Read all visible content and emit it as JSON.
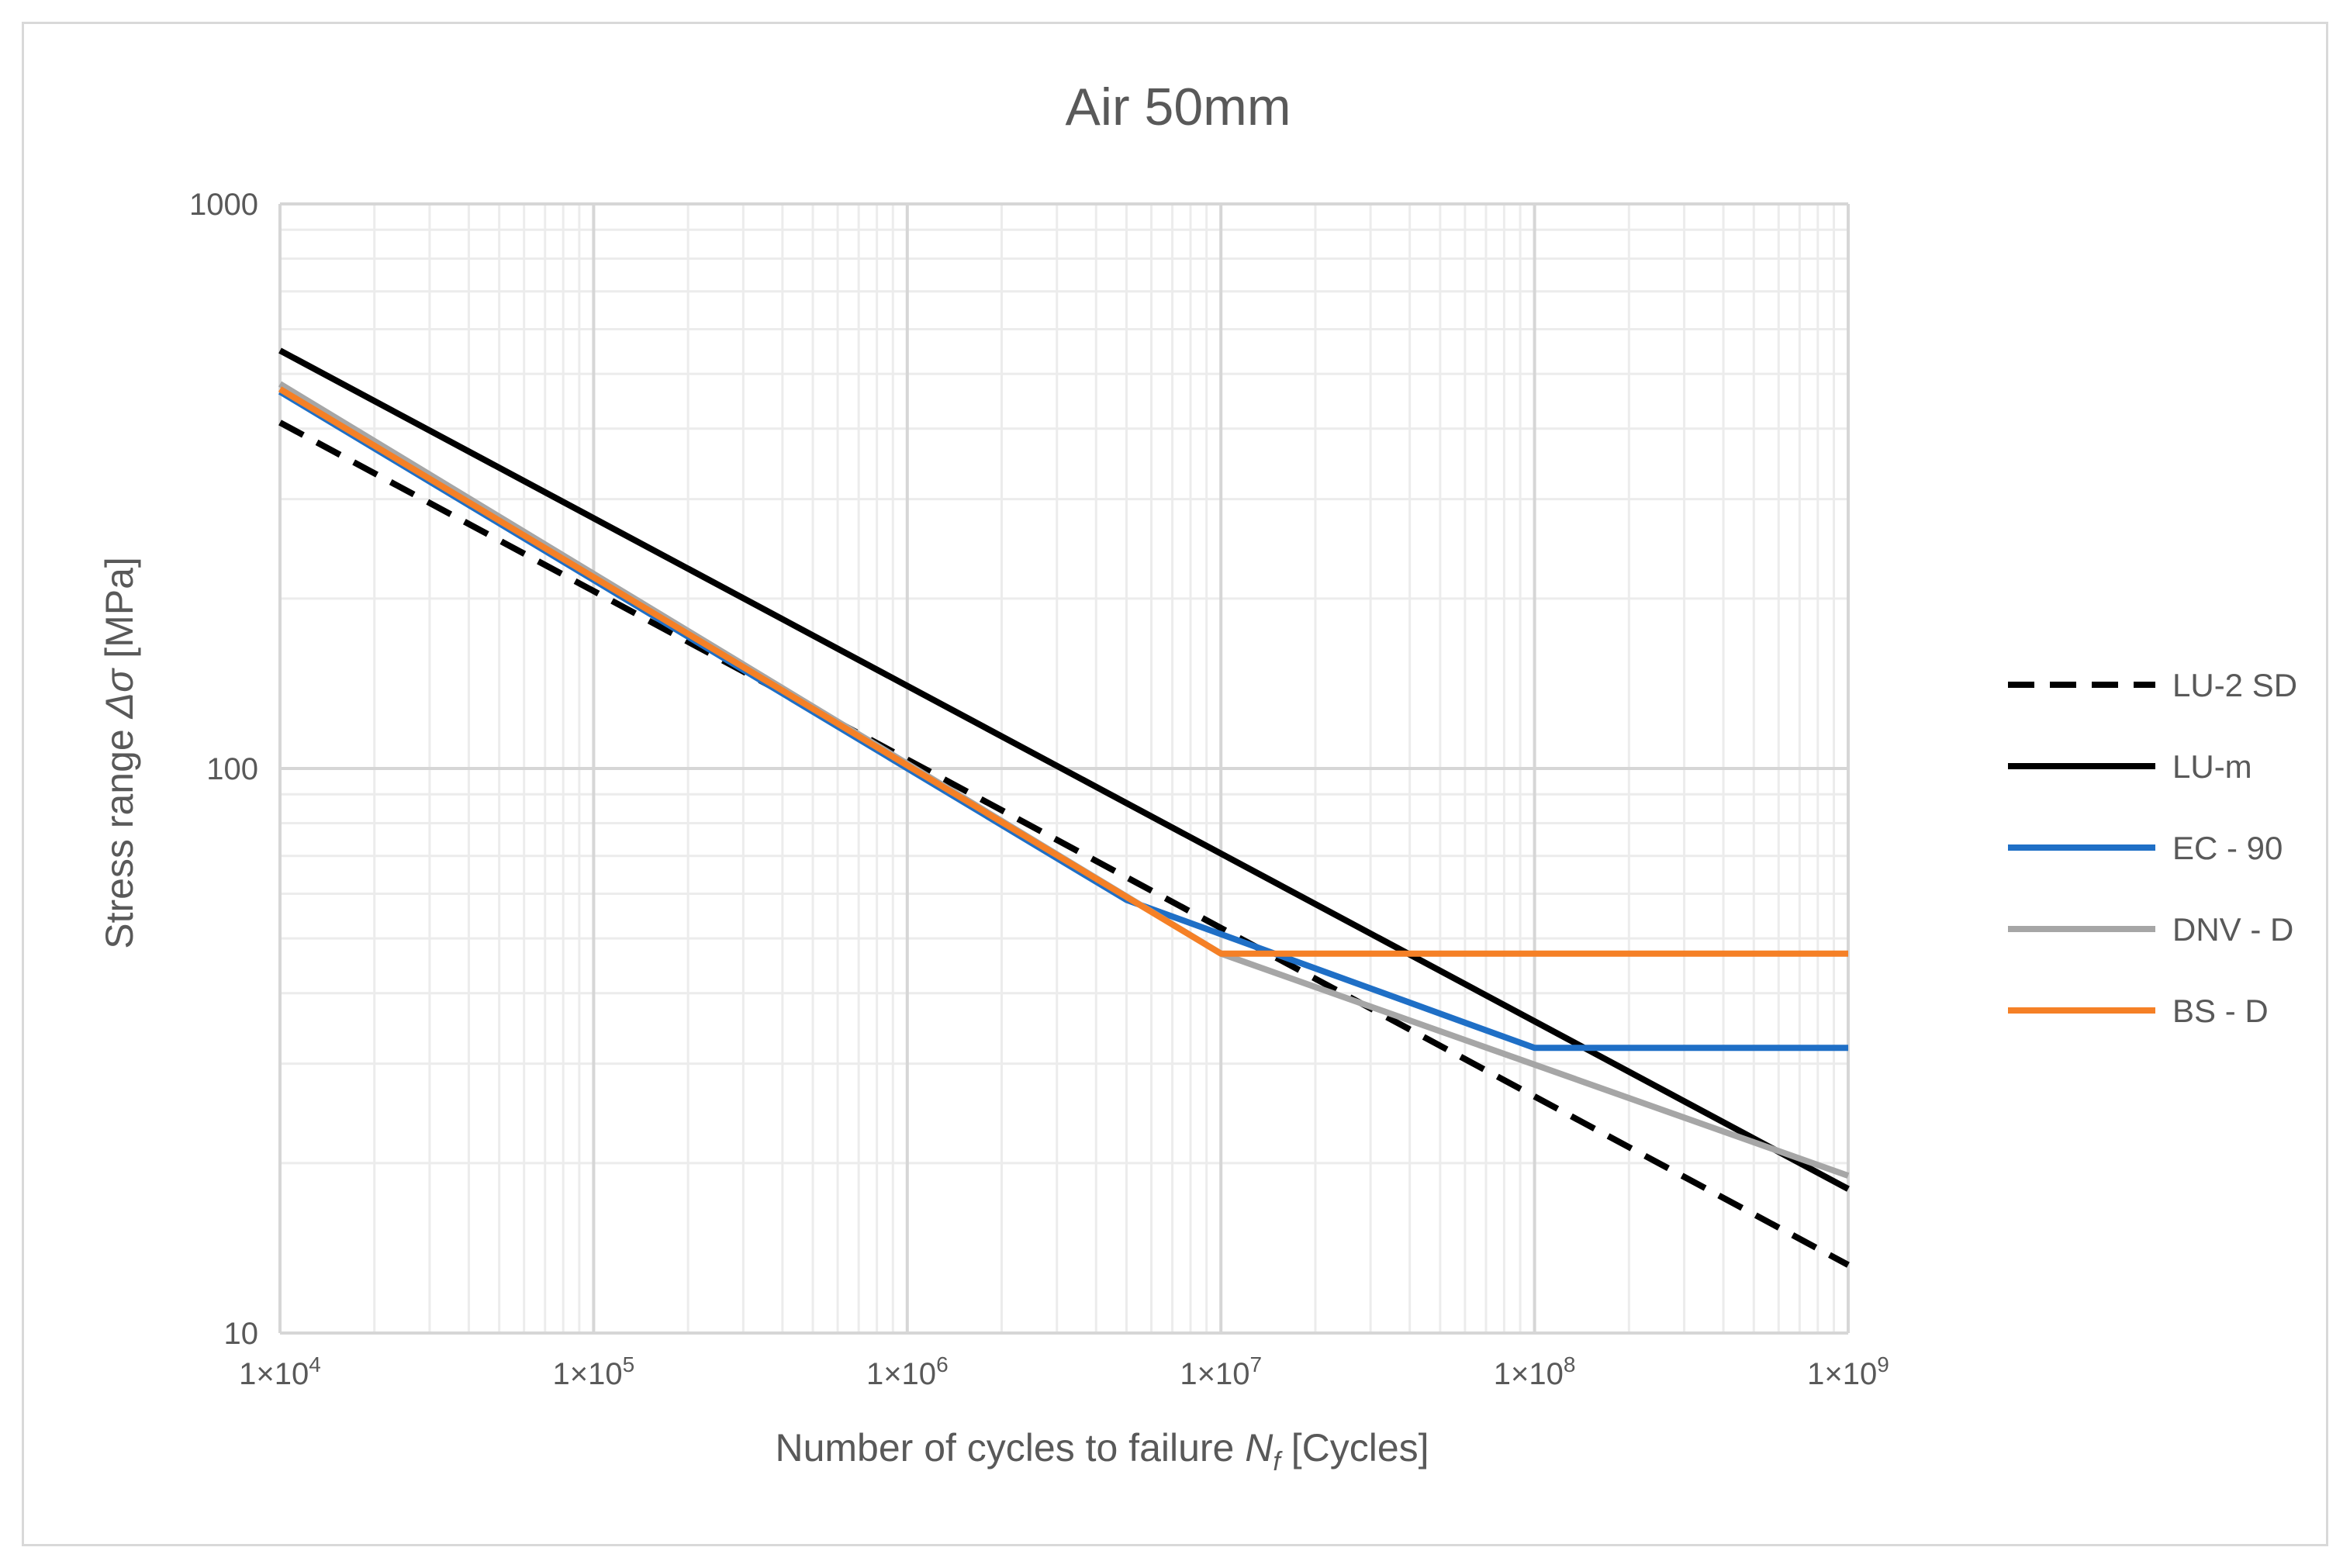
{
  "chart_data": {
    "type": "line",
    "title": "Air 50mm",
    "xlabel": {
      "main": "Number  of cycles to failure ",
      "symbol": "N",
      "subscript": "f",
      "unit": " [Cycles]"
    },
    "ylabel": {
      "main": "Stress range ",
      "symbol": "Δσ",
      "unit": " [MPa]"
    },
    "x_scale": "log",
    "y_scale": "log",
    "xlim": [
      10000,
      1000000000
    ],
    "ylim": [
      10,
      1000
    ],
    "x_ticks": [
      {
        "value": 10000,
        "label": "1×10",
        "exp": "4"
      },
      {
        "value": 100000,
        "label": "1×10",
        "exp": "5"
      },
      {
        "value": 1000000,
        "label": "1×10",
        "exp": "6"
      },
      {
        "value": 10000000,
        "label": "1×10",
        "exp": "7"
      },
      {
        "value": 100000000,
        "label": "1×10",
        "exp": "8"
      },
      {
        "value": 1000000000,
        "label": "1×10",
        "exp": "9"
      }
    ],
    "y_ticks": [
      {
        "value": 10,
        "label": "10"
      },
      {
        "value": 100,
        "label": "100"
      },
      {
        "value": 1000,
        "label": "1000"
      }
    ],
    "grid": true,
    "legend_position": "right",
    "series": [
      {
        "name": "LU-2 SD",
        "color": "#000000",
        "dash": true,
        "x": [
          10000,
          1000000000
        ],
        "y": [
          410,
          13.2
        ]
      },
      {
        "name": "LU-m",
        "color": "#000000",
        "dash": false,
        "x": [
          10000,
          1000000000
        ],
        "y": [
          550,
          18
        ]
      },
      {
        "name": "EC - 90",
        "color": "#1f6fc6",
        "dash": false,
        "x": [
          10000,
          5000000,
          100000000,
          1000000000
        ],
        "y": [
          465,
          58.5,
          32,
          32
        ]
      },
      {
        "name": "DNV - D",
        "color": "#a6a6a6",
        "dash": false,
        "x": [
          10000,
          10000000,
          1000000000
        ],
        "y": [
          480,
          47,
          19
        ]
      },
      {
        "name": "BS - D",
        "color": "#f58026",
        "dash": false,
        "x": [
          10000,
          10000000,
          1000000000
        ],
        "y": [
          470,
          47,
          47
        ]
      }
    ]
  }
}
